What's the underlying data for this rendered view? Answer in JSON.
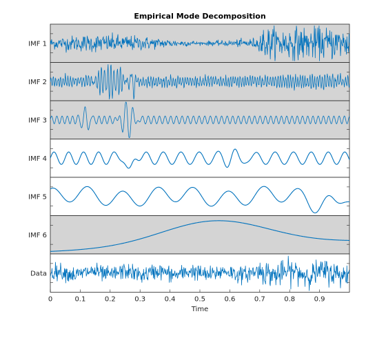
{
  "chart_data": {
    "type": "line",
    "title": "Empirical Mode Decomposition",
    "xlabel": "Time",
    "xlim": [
      0,
      1
    ],
    "x_ticks": [
      "0",
      "0.1",
      "0.2",
      "0.3",
      "0.4",
      "0.5",
      "0.6",
      "0.7",
      "0.8",
      "0.9"
    ],
    "x_tick_values": [
      0,
      0.1,
      0.2,
      0.3,
      0.4,
      0.5,
      0.6,
      0.7,
      0.8,
      0.9
    ],
    "panels": [
      {
        "label": "IMF 1",
        "highlighted": true
      },
      {
        "label": "IMF 2",
        "highlighted": true
      },
      {
        "label": "IMF 3",
        "highlighted": true
      },
      {
        "label": "IMF 4",
        "highlighted": false
      },
      {
        "label": "IMF 5",
        "highlighted": false
      },
      {
        "label": "IMF 6",
        "highlighted": true
      },
      {
        "label": "Data",
        "highlighted": false
      }
    ],
    "line_color": "#0072BD",
    "highlight_color": "#d4d4d4",
    "grid": false
  }
}
